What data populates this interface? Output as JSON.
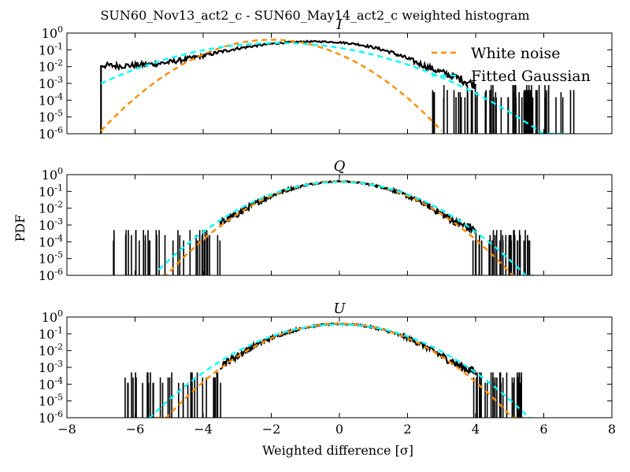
{
  "figure": {
    "suptitle": "SUN60_Nov13_act2_c - SUN60_May14_act2_c weighted histogram",
    "ylabel": "PDF",
    "xlabel": "Weighted difference [σ]"
  },
  "colors": {
    "histogram": "#000000",
    "white_noise": "#ff8c00",
    "fitted_gaussian": "#00ffff"
  },
  "legend": {
    "placement": "top-right of first panel",
    "entries": [
      {
        "label": "White noise",
        "color": "#ff8c00",
        "style": "dashed"
      },
      {
        "label": "Fitted Gaussian",
        "color": "#00ffff",
        "style": "dashed"
      }
    ]
  },
  "chart_data": [
    {
      "type": "line",
      "title": "I",
      "yscale": "log",
      "xlim": [
        -8,
        8
      ],
      "ylim": [
        1e-06,
        1
      ],
      "xticks": [
        "−8",
        "−6",
        "−4",
        "−2",
        "0",
        "2",
        "4",
        "6",
        "8"
      ],
      "yticks": [
        {
          "base": "10",
          "exp": "0"
        },
        {
          "base": "10",
          "exp": "-1"
        },
        {
          "base": "10",
          "exp": "-2"
        },
        {
          "base": "10",
          "exp": "-3"
        },
        {
          "base": "10",
          "exp": "-4"
        },
        {
          "base": "10",
          "exp": "-5"
        },
        {
          "base": "10",
          "exp": "-6"
        }
      ],
      "series": [
        {
          "name": "White noise",
          "kind": "gaussian",
          "mu": -2.0,
          "sigma": 1.0,
          "color": "#ff8c00",
          "x_range": [
            -7.0,
            3.0
          ]
        },
        {
          "name": "Fitted Gaussian",
          "kind": "gaussian",
          "mu": -1.8,
          "sigma": 1.56,
          "color": "#00ffff",
          "x_range": [
            -7.0,
            6.7
          ]
        },
        {
          "kind": "histogram",
          "x": [
            -7.0,
            -6.5,
            -6.0,
            -5.5,
            -5.0,
            -4.5,
            -4.0,
            -3.5,
            -3.0,
            -2.5,
            -2.0,
            -1.5,
            -1.0,
            -0.5,
            0.0,
            0.5,
            1.0,
            1.5,
            2.0,
            2.5,
            3.0,
            3.5,
            4.0
          ],
          "pdf": [
            0.012,
            0.011,
            0.012,
            0.014,
            0.018,
            0.028,
            0.045,
            0.075,
            0.12,
            0.17,
            0.23,
            0.28,
            0.31,
            0.31,
            0.28,
            0.22,
            0.14,
            0.075,
            0.03,
            0.011,
            0.0045,
            0.002,
            0.0008
          ],
          "sparse_x_range": [
            2.7,
            6.9
          ],
          "sparse_levels": [
            0.0008,
            0.0004,
            0.0003,
            0.00015
          ],
          "left_edge": -7.0
        }
      ]
    },
    {
      "type": "line",
      "title": "Q",
      "yscale": "log",
      "xlim": [
        -8,
        8
      ],
      "ylim": [
        1e-06,
        1
      ],
      "xticks": [
        "−8",
        "−6",
        "−4",
        "−2",
        "0",
        "2",
        "4",
        "6",
        "8"
      ],
      "yticks": [
        {
          "base": "10",
          "exp": "0"
        },
        {
          "base": "10",
          "exp": "-1"
        },
        {
          "base": "10",
          "exp": "-2"
        },
        {
          "base": "10",
          "exp": "-3"
        },
        {
          "base": "10",
          "exp": "-4"
        },
        {
          "base": "10",
          "exp": "-5"
        },
        {
          "base": "10",
          "exp": "-6"
        }
      ],
      "series": [
        {
          "name": "White noise",
          "kind": "gaussian",
          "mu": 0.0,
          "sigma": 1.0,
          "color": "#ff8c00",
          "x_range": [
            -5.2,
            5.2
          ]
        },
        {
          "name": "Fitted Gaussian",
          "kind": "gaussian",
          "mu": 0.0,
          "sigma": 1.08,
          "color": "#00ffff",
          "x_range": [
            -5.3,
            5.7
          ]
        },
        {
          "kind": "histogram",
          "x": [
            -3.5,
            -3.0,
            -2.5,
            -2.0,
            -1.5,
            -1.0,
            -0.5,
            0.0,
            0.5,
            1.0,
            1.5,
            2.0,
            2.5,
            3.0,
            3.5,
            4.0
          ],
          "pdf": [
            0.0012,
            0.0045,
            0.018,
            0.055,
            0.13,
            0.24,
            0.35,
            0.4,
            0.35,
            0.24,
            0.13,
            0.055,
            0.018,
            0.0045,
            0.0012,
            0.0005
          ],
          "sparse_left_range": [
            -6.7,
            -3.5
          ],
          "sparse_right_range": [
            3.9,
            5.6
          ],
          "sparse_levels": [
            0.0005,
            0.00025,
            0.00012
          ]
        }
      ]
    },
    {
      "type": "line",
      "title": "U",
      "yscale": "log",
      "xlim": [
        -8,
        8
      ],
      "ylim": [
        1e-06,
        1
      ],
      "xticks": [
        "−8",
        "−6",
        "−4",
        "−2",
        "0",
        "2",
        "4",
        "6",
        "8"
      ],
      "yticks": [
        {
          "base": "10",
          "exp": "0"
        },
        {
          "base": "10",
          "exp": "-1"
        },
        {
          "base": "10",
          "exp": "-2"
        },
        {
          "base": "10",
          "exp": "-3"
        },
        {
          "base": "10",
          "exp": "-4"
        },
        {
          "base": "10",
          "exp": "-5"
        },
        {
          "base": "10",
          "exp": "-6"
        }
      ],
      "series": [
        {
          "name": "White noise",
          "kind": "gaussian",
          "mu": 0.0,
          "sigma": 1.0,
          "color": "#ff8c00",
          "x_range": [
            -5.4,
            5.4
          ]
        },
        {
          "name": "Fitted Gaussian",
          "kind": "gaussian",
          "mu": 0.0,
          "sigma": 1.1,
          "color": "#00ffff",
          "x_range": [
            -5.6,
            5.6
          ]
        },
        {
          "kind": "histogram",
          "x": [
            -3.5,
            -3.0,
            -2.5,
            -2.0,
            -1.5,
            -1.0,
            -0.5,
            0.0,
            0.5,
            1.0,
            1.5,
            2.0,
            2.5,
            3.0,
            3.5,
            4.0
          ],
          "pdf": [
            0.0013,
            0.0048,
            0.019,
            0.057,
            0.13,
            0.24,
            0.35,
            0.39,
            0.35,
            0.24,
            0.13,
            0.057,
            0.019,
            0.0048,
            0.0013,
            0.0005
          ],
          "sparse_left_range": [
            -6.3,
            -3.4
          ],
          "sparse_right_range": [
            3.9,
            5.4
          ],
          "sparse_levels": [
            0.0005,
            0.00025,
            0.00012
          ]
        }
      ]
    }
  ]
}
